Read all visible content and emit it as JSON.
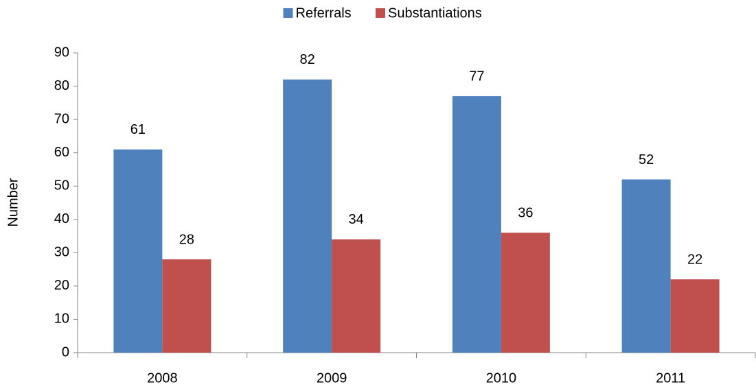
{
  "chart_data": {
    "type": "bar",
    "y_label": "Number",
    "categories": [
      "2008",
      "2009",
      "2010",
      "2011"
    ],
    "series": [
      {
        "name": "Referrals",
        "color": "#4f81bd",
        "values": [
          61,
          82,
          77,
          52
        ]
      },
      {
        "name": "Substantiations",
        "color": "#c0504d",
        "values": [
          28,
          34,
          36,
          22
        ]
      }
    ],
    "ylim": [
      0,
      90
    ],
    "yticks": [
      0,
      10,
      20,
      30,
      40,
      50,
      60,
      70,
      80,
      90
    ],
    "grid": false,
    "legend": "top",
    "data_labels": true
  }
}
